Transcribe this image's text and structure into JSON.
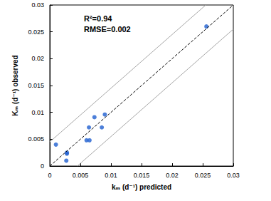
{
  "chart_data": {
    "type": "scatter",
    "x_label": "kₘ (d⁻¹) predicted",
    "y_label": "Kₘ (d⁻¹) observed",
    "annotations": [
      "R²=0.94",
      "RMSE=0.002"
    ],
    "xlim": [
      0,
      0.03
    ],
    "ylim": [
      0,
      0.03
    ],
    "xticks": [
      0,
      0.005,
      0.01,
      0.015,
      0.02,
      0.025,
      0.03
    ],
    "yticks": [
      0,
      0.005,
      0.01,
      0.015,
      0.02,
      0.025,
      0.03
    ],
    "grid": false,
    "series": [
      {
        "type": "line",
        "color": "#000000",
        "line_style": "dashed",
        "x": [
          0,
          0.03
        ],
        "values": [
          0,
          0.03
        ]
      },
      {
        "type": "line",
        "color": "#a6a6a6",
        "line_style": "solid",
        "x": [
          0,
          0.0255
        ],
        "values": [
          0.0045,
          0.03
        ]
      },
      {
        "type": "line",
        "color": "#a6a6a6",
        "line_style": "solid",
        "x": [
          0.0045,
          0.03
        ],
        "values": [
          0,
          0.0255
        ]
      },
      {
        "type": "scatter",
        "color": "#1f5fd0",
        "marker": "circle",
        "x": [
          0.001,
          0.0028,
          0.0028,
          0.0027,
          0.006,
          0.0065,
          0.0064,
          0.0073,
          0.0085,
          0.009,
          0.0256
        ],
        "values": [
          0.004,
          0.0025,
          0.0023,
          0.001,
          0.0048,
          0.0048,
          0.0072,
          0.0091,
          0.0072,
          0.0096,
          0.026
        ]
      }
    ]
  }
}
